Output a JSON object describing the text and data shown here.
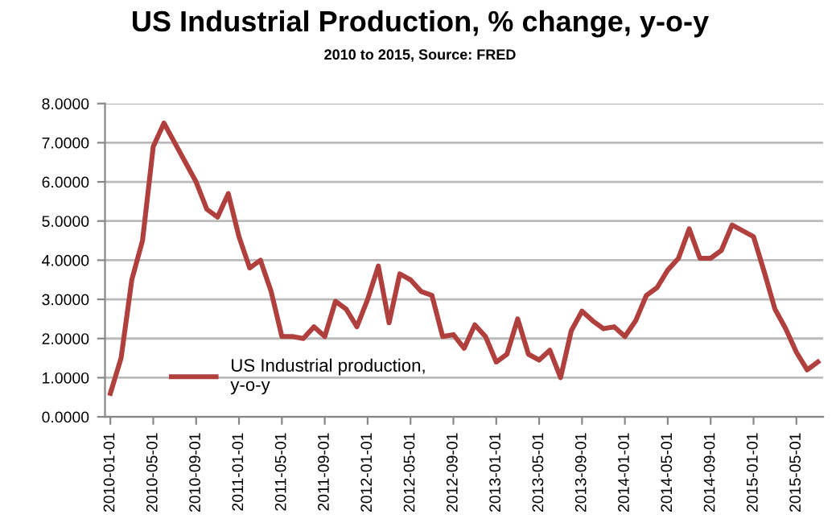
{
  "chart_data": {
    "type": "line",
    "title": "US Industrial Production, % change, y-o-y",
    "subtitle": "2010 to 2015, Source: FRED",
    "categories": [
      "2010-01-01",
      null,
      null,
      null,
      "2010-05-01",
      null,
      null,
      null,
      "2010-09-01",
      null,
      null,
      null,
      "2011-01-01",
      null,
      null,
      null,
      "2011-05-01",
      null,
      null,
      null,
      "2011-09-01",
      null,
      null,
      null,
      "2012-01-01",
      null,
      null,
      null,
      "2012-05-01",
      null,
      null,
      null,
      "2012-09-01",
      null,
      null,
      null,
      "2013-01-01",
      null,
      null,
      null,
      "2013-05-01",
      null,
      null,
      null,
      "2013-09-01",
      null,
      null,
      null,
      "2014-01-01",
      null,
      null,
      null,
      "2014-05-01",
      null,
      null,
      null,
      "2014-09-01",
      null,
      null,
      null,
      "2015-01-01",
      null,
      null,
      null,
      "2015-05-01",
      null,
      null
    ],
    "series": [
      {
        "name": "US Industrial production,\ny-o-y",
        "color": "#b0403e",
        "values": [
          0.6,
          1.5,
          3.5,
          4.5,
          6.9,
          7.5,
          7.0,
          6.5,
          6.0,
          5.3,
          5.1,
          5.7,
          4.6,
          3.8,
          4.0,
          3.2,
          2.05,
          2.05,
          2.0,
          2.3,
          2.05,
          2.95,
          2.75,
          2.3,
          3.0,
          3.85,
          2.4,
          3.65,
          3.5,
          3.2,
          3.1,
          2.05,
          2.1,
          1.75,
          2.35,
          2.05,
          1.4,
          1.6,
          2.5,
          1.6,
          1.45,
          1.7,
          1.0,
          2.2,
          2.7,
          2.45,
          2.25,
          2.3,
          2.05,
          2.45,
          3.1,
          3.3,
          3.75,
          4.05,
          4.8,
          4.05,
          4.05,
          4.25,
          4.9,
          4.75,
          4.6,
          3.7,
          2.75,
          2.25,
          1.65,
          1.2,
          1.4
        ]
      }
    ],
    "ylim": [
      0,
      8
    ],
    "yticks": [
      {
        "value": 0,
        "label": "0.0000"
      },
      {
        "value": 1,
        "label": "1.0000"
      },
      {
        "value": 2,
        "label": "2.0000"
      },
      {
        "value": 3,
        "label": "3.0000"
      },
      {
        "value": 4,
        "label": "4.0000"
      },
      {
        "value": 5,
        "label": "5.0000"
      },
      {
        "value": 6,
        "label": "6.0000"
      },
      {
        "value": 7,
        "label": "7.0000"
      },
      {
        "value": 8,
        "label": "8.0000"
      }
    ],
    "grid": "y",
    "legend": "bottom left",
    "marker": "none",
    "line_style": "solid"
  }
}
